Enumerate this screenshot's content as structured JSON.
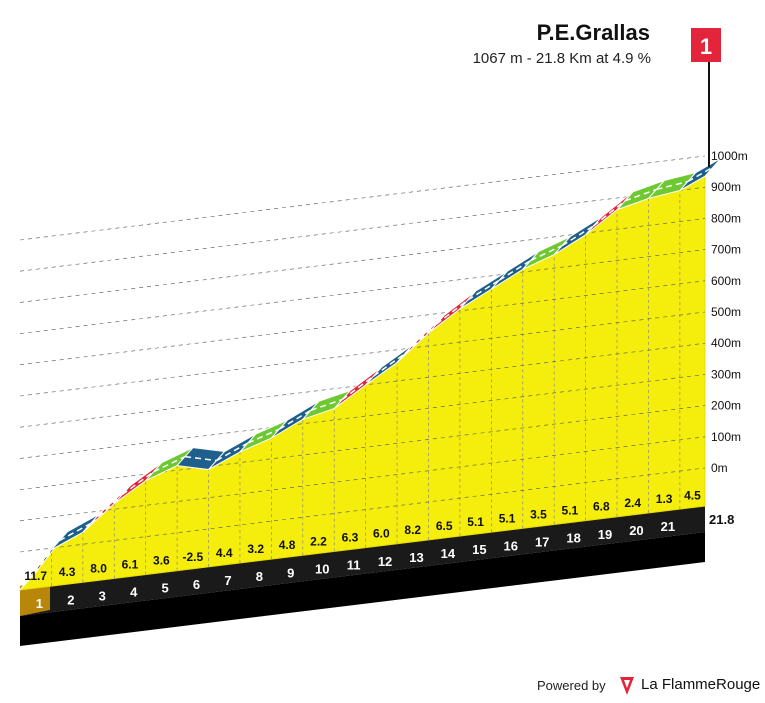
{
  "header": {
    "title": "P.E.Grallas",
    "subtitle": "1067 m - 21.8 Km at 4.9 %",
    "finish_flag": "1"
  },
  "footer": {
    "powered_by": "Powered by",
    "brand": "La FlammeRouge"
  },
  "colors": {
    "profile_fill": "#f5ed0c",
    "grade_black": "#1a1a1a",
    "grade_blue": "#1f5f8b",
    "grade_red": "#e3253c",
    "grade_green": "#6ec832",
    "flag": "#e3253c",
    "base_gold": "#b8860b"
  },
  "chart_data": {
    "type": "area",
    "title": "P.E.Grallas",
    "subtitle": "1067 m - 21.8 Km at 4.9 %",
    "xlabel": "",
    "ylabel": "",
    "x_unit": "km",
    "y_unit": "m",
    "xlim": [
      0,
      21.8
    ],
    "ylim": [
      0,
      1000
    ],
    "grid": true,
    "km_markers": [
      "1",
      "2",
      "3",
      "4",
      "5",
      "6",
      "7",
      "8",
      "9",
      "10",
      "11",
      "12",
      "13",
      "14",
      "15",
      "16",
      "17",
      "18",
      "19",
      "20",
      "21"
    ],
    "km_end_label": "21.8",
    "y_ticks": [
      "0m",
      "100m",
      "200m",
      "300m",
      "400m",
      "500m",
      "600m",
      "700m",
      "800m",
      "900m",
      "1000m"
    ],
    "segments": [
      {
        "km": 1,
        "gradient": "11.7",
        "color": "black"
      },
      {
        "km": 2,
        "gradient": "4.3",
        "color": "blue"
      },
      {
        "km": 3,
        "gradient": "8.0",
        "color": "red"
      },
      {
        "km": 4,
        "gradient": "6.1",
        "color": "red"
      },
      {
        "km": 5,
        "gradient": "3.6",
        "color": "green"
      },
      {
        "km": 6,
        "gradient": "-2.5",
        "color": "blue"
      },
      {
        "km": 7,
        "gradient": "4.4",
        "color": "blue"
      },
      {
        "km": 8,
        "gradient": "3.2",
        "color": "green"
      },
      {
        "km": 9,
        "gradient": "4.8",
        "color": "blue"
      },
      {
        "km": 10,
        "gradient": "2.2",
        "color": "green"
      },
      {
        "km": 11,
        "gradient": "6.3",
        "color": "red"
      },
      {
        "km": 12,
        "gradient": "6.0",
        "color": "blue"
      },
      {
        "km": 13,
        "gradient": "8.2",
        "color": "red"
      },
      {
        "km": 14,
        "gradient": "6.5",
        "color": "red"
      },
      {
        "km": 15,
        "gradient": "5.1",
        "color": "blue"
      },
      {
        "km": 16,
        "gradient": "5.1",
        "color": "blue"
      },
      {
        "km": 17,
        "gradient": "3.5",
        "color": "green"
      },
      {
        "km": 18,
        "gradient": "5.1",
        "color": "blue"
      },
      {
        "km": 19,
        "gradient": "6.8",
        "color": "red"
      },
      {
        "km": 20,
        "gradient": "2.4",
        "color": "green"
      },
      {
        "km": 21,
        "gradient": "1.3",
        "color": "green"
      },
      {
        "km": 21.8,
        "gradient": "4.5",
        "color": "blue"
      }
    ]
  }
}
